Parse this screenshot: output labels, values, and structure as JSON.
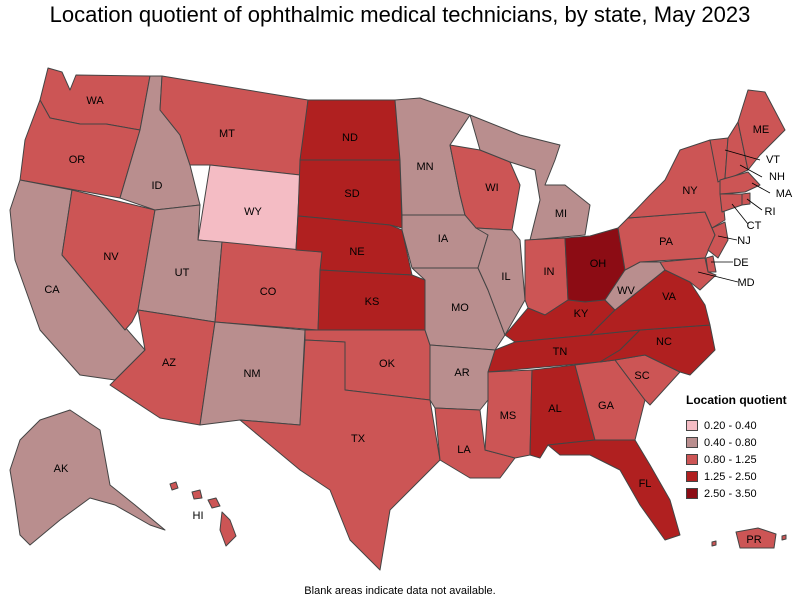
{
  "title": "Location quotient of ophthalmic medical technicians, by state, May 2023",
  "footnote": "Blank areas indicate data not available.",
  "legend": {
    "title": "Location quotient",
    "bins": [
      {
        "label": "0.20 - 0.40",
        "color": "#f4bcc4"
      },
      {
        "label": "0.40 - 0.80",
        "color": "#b98e8e"
      },
      {
        "label": "0.80 - 1.25",
        "color": "#cc5555"
      },
      {
        "label": "1.25 - 2.50",
        "color": "#b02020"
      },
      {
        "label": "2.50 - 3.50",
        "color": "#8c0c14"
      }
    ]
  },
  "states": {
    "WA": {
      "label": "WA",
      "bin": 2
    },
    "OR": {
      "label": "OR",
      "bin": 2
    },
    "CA": {
      "label": "CA",
      "bin": 1
    },
    "NV": {
      "label": "NV",
      "bin": 2
    },
    "ID": {
      "label": "ID",
      "bin": 1
    },
    "MT": {
      "label": "MT",
      "bin": 2
    },
    "WY": {
      "label": "WY",
      "bin": 0
    },
    "UT": {
      "label": "UT",
      "bin": 1
    },
    "CO": {
      "label": "CO",
      "bin": 2
    },
    "AZ": {
      "label": "AZ",
      "bin": 2
    },
    "NM": {
      "label": "NM",
      "bin": 1
    },
    "ND": {
      "label": "ND",
      "bin": 3
    },
    "SD": {
      "label": "SD",
      "bin": 3
    },
    "NE": {
      "label": "NE",
      "bin": 3
    },
    "KS": {
      "label": "KS",
      "bin": 3
    },
    "OK": {
      "label": "OK",
      "bin": 2
    },
    "TX": {
      "label": "TX",
      "bin": 2
    },
    "MN": {
      "label": "MN",
      "bin": 1
    },
    "IA": {
      "label": "IA",
      "bin": 1
    },
    "MO": {
      "label": "MO",
      "bin": 1
    },
    "AR": {
      "label": "AR",
      "bin": 1
    },
    "LA": {
      "label": "LA",
      "bin": 2
    },
    "WI": {
      "label": "WI",
      "bin": 2
    },
    "IL": {
      "label": "IL",
      "bin": 1
    },
    "MI": {
      "label": "MI",
      "bin": 1
    },
    "IN": {
      "label": "IN",
      "bin": 2
    },
    "OH": {
      "label": "OH",
      "bin": 4
    },
    "KY": {
      "label": "KY",
      "bin": 3
    },
    "TN": {
      "label": "TN",
      "bin": 3
    },
    "MS": {
      "label": "MS",
      "bin": 2
    },
    "AL": {
      "label": "AL",
      "bin": 3
    },
    "GA": {
      "label": "GA",
      "bin": 2
    },
    "FL": {
      "label": "FL",
      "bin": 3
    },
    "SC": {
      "label": "SC",
      "bin": 2
    },
    "NC": {
      "label": "NC",
      "bin": 3
    },
    "VA": {
      "label": "VA",
      "bin": 3
    },
    "WV": {
      "label": "WV",
      "bin": 1
    },
    "PA": {
      "label": "PA",
      "bin": 2
    },
    "NY": {
      "label": "NY",
      "bin": 2
    },
    "VT": {
      "label": "VT",
      "bin": 2
    },
    "NH": {
      "label": "NH",
      "bin": 2
    },
    "ME": {
      "label": "ME",
      "bin": 2
    },
    "MA": {
      "label": "MA",
      "bin": 2
    },
    "RI": {
      "label": "RI",
      "bin": 2
    },
    "CT": {
      "label": "CT",
      "bin": 2
    },
    "NJ": {
      "label": "NJ",
      "bin": 2
    },
    "DE": {
      "label": "DE",
      "bin": 2
    },
    "MD": {
      "label": "MD",
      "bin": 2
    },
    "AK": {
      "label": "AK",
      "bin": 1
    },
    "HI": {
      "label": "HI",
      "bin": 2
    },
    "PR": {
      "label": "PR",
      "bin": 2
    }
  }
}
